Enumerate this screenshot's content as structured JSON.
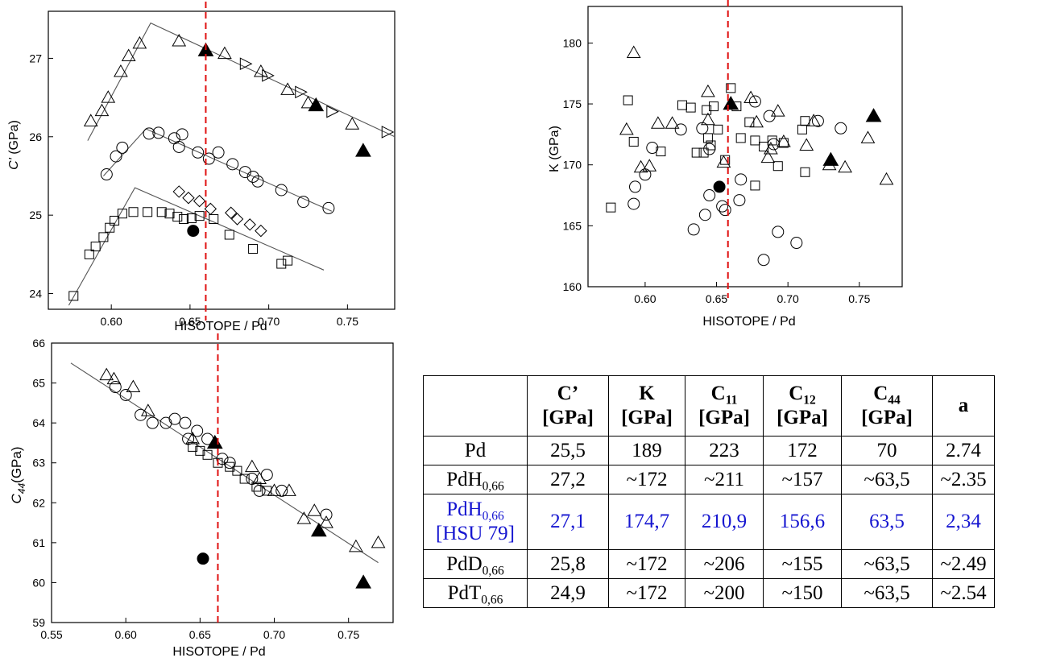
{
  "chart_data": [
    {
      "type": "scatter",
      "id": "cprime",
      "ylabel": "C' (GPa)",
      "xlabel": "HISOTOPE / Pd",
      "xlim": [
        0.56,
        0.78
      ],
      "ylim": [
        23.8,
        27.6
      ],
      "xticks": [
        "0.60",
        "0.65",
        "0.70",
        "0.75"
      ],
      "yticks": [
        "24",
        "25",
        "26",
        "27"
      ],
      "vline_x": 0.66,
      "fit_lines": [
        [
          [
            0.585,
            25.95
          ],
          [
            0.625,
            27.45
          ],
          [
            0.78,
            26.0
          ]
        ],
        [
          [
            0.595,
            25.5
          ],
          [
            0.622,
            26.1
          ],
          [
            0.74,
            25.05
          ]
        ],
        [
          [
            0.573,
            23.85
          ],
          [
            0.615,
            25.35
          ],
          [
            0.735,
            24.3
          ]
        ]
      ],
      "series": [
        {
          "marker": "triangle-open",
          "points": [
            [
              0.587,
              26.2
            ],
            [
              0.594,
              26.33
            ],
            [
              0.598,
              26.5
            ],
            [
              0.606,
              26.83
            ],
            [
              0.611,
              27.03
            ],
            [
              0.618,
              27.19
            ],
            [
              0.643,
              27.22
            ],
            [
              0.672,
              27.06
            ],
            [
              0.695,
              26.83
            ],
            [
              0.712,
              26.6
            ],
            [
              0.725,
              26.43
            ],
            [
              0.753,
              26.16
            ]
          ]
        },
        {
          "marker": "triangle-right-open",
          "points": [
            [
              0.685,
              26.93
            ],
            [
              0.699,
              26.78
            ],
            [
              0.72,
              26.57
            ],
            [
              0.74,
              26.32
            ],
            [
              0.775,
              26.06
            ]
          ]
        },
        {
          "marker": "triangle-filled",
          "points": [
            [
              0.66,
              27.1
            ],
            [
              0.73,
              26.4
            ],
            [
              0.76,
              25.82
            ]
          ]
        },
        {
          "marker": "circle-open",
          "points": [
            [
              0.597,
              25.52
            ],
            [
              0.603,
              25.75
            ],
            [
              0.607,
              25.86
            ],
            [
              0.624,
              26.04
            ],
            [
              0.63,
              26.05
            ],
            [
              0.64,
              25.98
            ],
            [
              0.643,
              25.87
            ],
            [
              0.645,
              26.03
            ],
            [
              0.655,
              25.8
            ],
            [
              0.662,
              25.72
            ],
            [
              0.668,
              25.8
            ],
            [
              0.677,
              25.65
            ],
            [
              0.685,
              25.55
            ],
            [
              0.69,
              25.49
            ],
            [
              0.693,
              25.43
            ],
            [
              0.708,
              25.32
            ],
            [
              0.722,
              25.17
            ],
            [
              0.738,
              25.09
            ]
          ]
        },
        {
          "marker": "circle-filled",
          "points": [
            [
              0.652,
              24.8
            ]
          ]
        },
        {
          "marker": "diamond-open",
          "points": [
            [
              0.643,
              25.3
            ],
            [
              0.649,
              25.22
            ],
            [
              0.656,
              25.18
            ],
            [
              0.663,
              25.08
            ],
            [
              0.676,
              25.03
            ],
            [
              0.68,
              24.95
            ],
            [
              0.688,
              24.88
            ],
            [
              0.695,
              24.8
            ]
          ]
        },
        {
          "marker": "square-open",
          "points": [
            [
              0.576,
              23.97
            ],
            [
              0.586,
              24.5
            ],
            [
              0.59,
              24.6
            ],
            [
              0.595,
              24.72
            ],
            [
              0.599,
              24.84
            ],
            [
              0.602,
              24.93
            ],
            [
              0.607,
              25.02
            ],
            [
              0.614,
              25.04
            ],
            [
              0.623,
              25.04
            ],
            [
              0.632,
              25.04
            ],
            [
              0.637,
              25.02
            ],
            [
              0.642,
              24.98
            ],
            [
              0.646,
              24.95
            ],
            [
              0.651,
              24.96
            ],
            [
              0.656,
              24.99
            ],
            [
              0.665,
              24.95
            ],
            [
              0.675,
              24.75
            ],
            [
              0.69,
              24.57
            ],
            [
              0.708,
              24.38
            ],
            [
              0.712,
              24.42
            ]
          ]
        }
      ]
    },
    {
      "type": "scatter",
      "id": "bulk",
      "ylabel": "K (GPa)",
      "xlabel": "HISOTOPE / Pd",
      "xlim": [
        0.56,
        0.78
      ],
      "ylim": [
        160,
        183
      ],
      "xticks": [
        "0.60",
        "0.65",
        "0.70",
        "0.75"
      ],
      "yticks": [
        "160",
        "165",
        "170",
        "175",
        "180"
      ],
      "vline_x": 0.658,
      "series": [
        {
          "marker": "triangle-open",
          "points": [
            [
              0.587,
              172.9
            ],
            [
              0.592,
              179.2
            ],
            [
              0.597,
              169.8
            ],
            [
              0.603,
              169.9
            ],
            [
              0.609,
              173.4
            ],
            [
              0.619,
              173.4
            ],
            [
              0.644,
              176.0
            ],
            [
              0.644,
              173.7
            ],
            [
              0.655,
              170.2
            ],
            [
              0.674,
              175.5
            ],
            [
              0.678,
              173.5
            ],
            [
              0.686,
              170.6
            ],
            [
              0.688,
              171.3
            ],
            [
              0.693,
              174.4
            ],
            [
              0.697,
              171.9
            ],
            [
              0.713,
              171.6
            ],
            [
              0.718,
              173.6
            ],
            [
              0.729,
              170.0
            ],
            [
              0.74,
              169.8
            ],
            [
              0.756,
              172.2
            ],
            [
              0.769,
              168.8
            ]
          ]
        },
        {
          "marker": "triangle-filled",
          "points": [
            [
              0.66,
              175.0
            ],
            [
              0.73,
              170.4
            ],
            [
              0.76,
              174.0
            ]
          ]
        },
        {
          "marker": "circle-open",
          "points": [
            [
              0.592,
              166.8
            ],
            [
              0.593,
              168.2
            ],
            [
              0.6,
              169.2
            ],
            [
              0.605,
              171.4
            ],
            [
              0.625,
              172.9
            ],
            [
              0.634,
              164.7
            ],
            [
              0.64,
              173.0
            ],
            [
              0.642,
              165.9
            ],
            [
              0.645,
              171.3
            ],
            [
              0.645,
              167.5
            ],
            [
              0.654,
              166.6
            ],
            [
              0.656,
              166.3
            ],
            [
              0.666,
              167.1
            ],
            [
              0.667,
              168.8
            ],
            [
              0.677,
              175.2
            ],
            [
              0.683,
              162.2
            ],
            [
              0.687,
              174.0
            ],
            [
              0.69,
              171.7
            ],
            [
              0.693,
              164.5
            ],
            [
              0.706,
              163.6
            ],
            [
              0.721,
              173.6
            ],
            [
              0.737,
              173.0
            ]
          ]
        },
        {
          "marker": "circle-filled",
          "points": [
            [
              0.652,
              168.2
            ]
          ]
        },
        {
          "marker": "square-open",
          "points": [
            [
              0.576,
              166.5
            ],
            [
              0.588,
              175.3
            ],
            [
              0.592,
              171.9
            ],
            [
              0.611,
              171.1
            ],
            [
              0.626,
              174.9
            ],
            [
              0.632,
              174.7
            ],
            [
              0.636,
              171.0
            ],
            [
              0.641,
              171.0
            ],
            [
              0.643,
              174.5
            ],
            [
              0.644,
              172.2
            ],
            [
              0.646,
              171.6
            ],
            [
              0.648,
              174.8
            ],
            [
              0.651,
              172.9
            ],
            [
              0.656,
              170.4
            ],
            [
              0.66,
              176.3
            ],
            [
              0.664,
              174.8
            ],
            [
              0.667,
              172.2
            ],
            [
              0.673,
              173.5
            ],
            [
              0.677,
              172.0
            ],
            [
              0.677,
              168.3
            ],
            [
              0.683,
              171.5
            ],
            [
              0.689,
              172.0
            ],
            [
              0.693,
              169.9
            ],
            [
              0.697,
              171.8
            ],
            [
              0.71,
              172.9
            ],
            [
              0.712,
              173.6
            ],
            [
              0.712,
              169.4
            ]
          ]
        }
      ]
    },
    {
      "type": "scatter",
      "id": "c44",
      "ylabel": "C44(GPa)",
      "xlabel": "HISOTOPE / Pd",
      "xlim": [
        0.55,
        0.78
      ],
      "ylim": [
        59,
        66
      ],
      "xticks": [
        "0.55",
        "0.60",
        "0.65",
        "0.70",
        "0.75",
        "0.80"
      ],
      "yticks": [
        "59",
        "60",
        "61",
        "62",
        "63",
        "64",
        "65",
        "66"
      ],
      "vline_x": 0.662,
      "fit_lines": [
        [
          [
            0.563,
            65.5
          ],
          [
            0.77,
            60.5
          ]
        ]
      ],
      "series": [
        {
          "marker": "triangle-open",
          "points": [
            [
              0.587,
              65.2
            ],
            [
              0.592,
              65.1
            ],
            [
              0.605,
              64.9
            ],
            [
              0.615,
              64.3
            ],
            [
              0.645,
              63.6
            ],
            [
              0.685,
              62.9
            ],
            [
              0.69,
              62.6
            ],
            [
              0.7,
              62.3
            ],
            [
              0.71,
              62.3
            ],
            [
              0.72,
              61.6
            ],
            [
              0.727,
              61.8
            ],
            [
              0.735,
              61.5
            ],
            [
              0.755,
              60.9
            ],
            [
              0.77,
              61.0
            ]
          ]
        },
        {
          "marker": "triangle-filled",
          "points": [
            [
              0.66,
              63.5
            ],
            [
              0.73,
              61.3
            ],
            [
              0.76,
              60.0
            ]
          ]
        },
        {
          "marker": "circle-open",
          "points": [
            [
              0.593,
              64.9
            ],
            [
              0.6,
              64.7
            ],
            [
              0.61,
              64.2
            ],
            [
              0.618,
              64.0
            ],
            [
              0.627,
              64.0
            ],
            [
              0.633,
              64.1
            ],
            [
              0.64,
              64.0
            ],
            [
              0.642,
              63.6
            ],
            [
              0.648,
              63.8
            ],
            [
              0.655,
              63.6
            ],
            [
              0.665,
              63.1
            ],
            [
              0.67,
              63.0
            ],
            [
              0.685,
              62.6
            ],
            [
              0.69,
              62.3
            ],
            [
              0.695,
              62.7
            ],
            [
              0.705,
              62.3
            ],
            [
              0.735,
              61.7
            ]
          ]
        },
        {
          "marker": "circle-filled",
          "points": [
            [
              0.652,
              60.6
            ]
          ]
        },
        {
          "marker": "square-open",
          "points": [
            [
              0.645,
              63.4
            ],
            [
              0.65,
              63.3
            ],
            [
              0.655,
              63.2
            ],
            [
              0.662,
              63.0
            ],
            [
              0.67,
              62.9
            ],
            [
              0.675,
              62.8
            ],
            [
              0.68,
              62.6
            ],
            [
              0.688,
              62.4
            ],
            [
              0.695,
              62.3
            ]
          ]
        }
      ]
    }
  ],
  "table": {
    "headers": [
      {
        "main": "",
        "sub": "",
        "unit": ""
      },
      {
        "main": "C’",
        "sub": "",
        "unit": "[GPa]"
      },
      {
        "main": "K",
        "sub": "",
        "unit": "[GPa]"
      },
      {
        "main": "C",
        "sub": "11",
        "unit": "[GPa]"
      },
      {
        "main": "C",
        "sub": "12",
        "unit": "[GPa]"
      },
      {
        "main": "C",
        "sub": "44",
        "unit": "[GPa]"
      },
      {
        "main": "a",
        "sub": "",
        "unit": ""
      }
    ],
    "rows": [
      {
        "label": {
          "main": "Pd",
          "sub": "",
          "extra": ""
        },
        "highlight": false,
        "values": [
          "25,5",
          "189",
          "223",
          "172",
          "70",
          "2.74"
        ]
      },
      {
        "label": {
          "main": "PdH",
          "sub": "0,66",
          "extra": ""
        },
        "highlight": false,
        "values": [
          "27,2",
          "~172",
          "~211",
          "~157",
          "~63,5",
          "~2.35"
        ]
      },
      {
        "label": {
          "main": "PdH",
          "sub": "0,66",
          "extra": "[HSU 79]"
        },
        "highlight": true,
        "values": [
          "27,1",
          "174,7",
          "210,9",
          "156,6",
          "63,5",
          "2,34"
        ]
      },
      {
        "label": {
          "main": "PdD",
          "sub": "0,66",
          "extra": ""
        },
        "highlight": false,
        "values": [
          "25,8",
          "~172",
          "~206",
          "~155",
          "~63,5",
          "~2.49"
        ]
      },
      {
        "label": {
          "main": "PdT",
          "sub": "0,66",
          "extra": ""
        },
        "highlight": false,
        "values": [
          "24,9",
          "~172",
          "~200",
          "~150",
          "~63,5",
          "~2.54"
        ]
      }
    ],
    "highlight_color": "#1515d0"
  },
  "colors": {
    "vline": "#e01010",
    "fit": "#555555",
    "axis": "#000000"
  }
}
